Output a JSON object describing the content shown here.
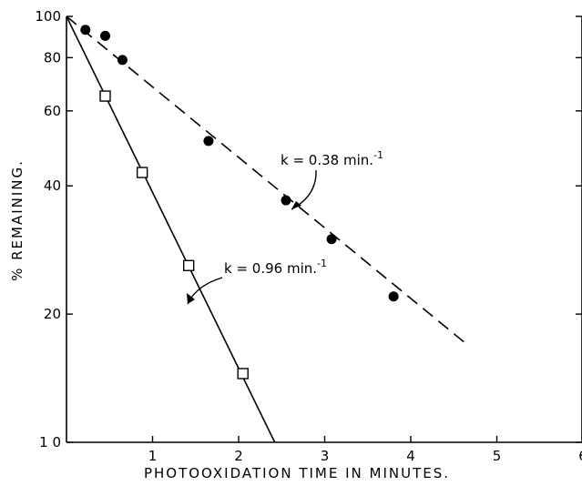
{
  "chart_data": {
    "type": "scatter",
    "title": "",
    "xlabel": "PHOTOOXIDATION TIME IN MINUTES.",
    "ylabel": "% REMAINING.",
    "xlim": [
      0,
      6
    ],
    "ylim": [
      10,
      100
    ],
    "yscale": "log",
    "grid": false,
    "x_ticks": [
      1,
      2,
      3,
      4,
      5,
      6
    ],
    "x_tick_labels": [
      "1",
      "2",
      "3",
      "4",
      "5",
      "6"
    ],
    "y_ticks": [
      10,
      20,
      40,
      60,
      80,
      100
    ],
    "y_tick_labels": [
      "1 0",
      "20",
      "40",
      "60",
      "80",
      "100"
    ],
    "series": [
      {
        "marker": "filled-circle",
        "line_style": "dashed",
        "color": "#000000",
        "x": [
          0.22,
          0.45,
          0.65,
          1.65,
          2.55,
          3.08,
          3.8
        ],
        "y": [
          93,
          90,
          79,
          51,
          37,
          30,
          22
        ],
        "fit_line": {
          "x": [
            0,
            4.68
          ],
          "y": [
            100,
            16.8
          ]
        },
        "annotation": {
          "text": "k = 0.38 min.",
          "superscript": "-1"
        }
      },
      {
        "marker": "open-square",
        "line_style": "solid",
        "color": "#000000",
        "x": [
          0.45,
          0.88,
          1.42,
          2.05
        ],
        "y": [
          65,
          43,
          26,
          14.5
        ],
        "fit_line": {
          "x": [
            0,
            2.42
          ],
          "y": [
            100,
            10
          ]
        },
        "annotation": {
          "text": "k = 0.96 min.",
          "superscript": "-1"
        }
      }
    ]
  }
}
